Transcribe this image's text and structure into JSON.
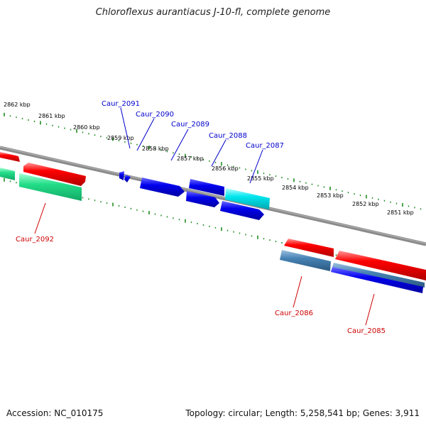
{
  "title": "Chloroflexus aurantiacus J-10-fl, complete genome",
  "accession_text": "Accession: NC_010175",
  "stats_text": "Topology: circular; Length: 5,258,541 bp; Genes: 3,911",
  "kbp_ticks": [
    "2862 kbp",
    "2861 kbp",
    "2860 kbp",
    "2859 kbp",
    "2858 kbp",
    "2857 kbp",
    "2856 kbp",
    "2855 kbp",
    "2854 kbp",
    "2853 kbp",
    "2852 kbp",
    "2851 kbp"
  ],
  "gene_labels_top": [
    "Caur_2091",
    "Caur_2090",
    "Caur_2089",
    "Caur_2088",
    "Caur_2087"
  ],
  "gene_labels_bottom": [
    "Caur_2092",
    "Caur_2086",
    "Caur_2085"
  ],
  "colors": {
    "label_top": "#0000cc",
    "label_bottom": "#cc0000",
    "tick": "#1f8a1f",
    "backbone": "#777777",
    "gene_red": "#ff0000",
    "gene_blue": "#0000ee",
    "gene_cyan": "#00e5ee",
    "gene_green": "#22dd88",
    "gene_steel": "#4682b4"
  }
}
